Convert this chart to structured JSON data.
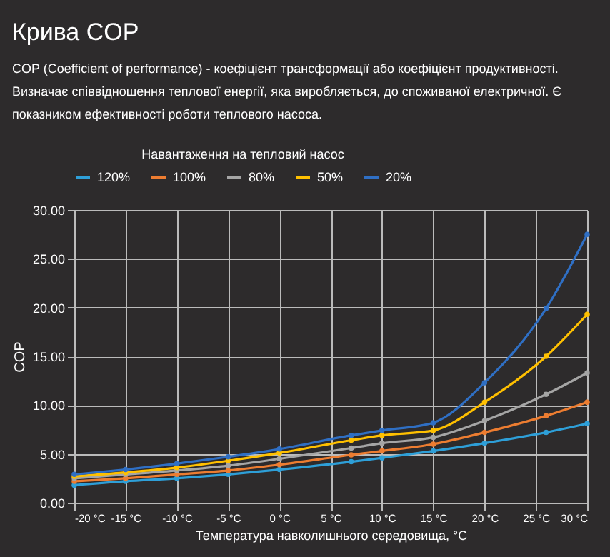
{
  "chart_data": {
    "type": "line",
    "title": "Крива COP",
    "subtitle": "COP (Coefficient of performance) - коефіцієнт трансформації або коефіцієнт продуктивності. Визначає співвідношення теплової енергії, яка виробляється, до споживаної електричної. Є показником ефективності роботи теплового насоса.",
    "xlabel": "Температура навколишнього середовища, °C",
    "ylabel": "COP",
    "legend_title": "Навантаження на тепловий насос",
    "x": [
      -20,
      -15,
      -10,
      -5,
      0,
      7,
      10,
      15,
      20,
      26,
      30
    ],
    "series": [
      {
        "name": "120%",
        "color": "#2e9fd8",
        "values": [
          1.8,
          2.2,
          2.5,
          2.9,
          3.4,
          4.2,
          4.6,
          5.3,
          6.1,
          7.2,
          8.1
        ]
      },
      {
        "name": "100%",
        "color": "#ed7d31",
        "values": [
          2.2,
          2.5,
          2.9,
          3.3,
          3.9,
          4.9,
          5.3,
          6.0,
          7.2,
          8.9,
          10.3
        ]
      },
      {
        "name": "80%",
        "color": "#a5a5a5",
        "values": [
          2.5,
          2.9,
          3.3,
          3.8,
          4.5,
          5.6,
          6.1,
          6.7,
          8.4,
          11.1,
          13.3
        ]
      },
      {
        "name": "50%",
        "color": "#ffc000",
        "values": [
          2.7,
          3.1,
          3.6,
          4.3,
          5.1,
          6.4,
          6.9,
          7.4,
          10.3,
          15.0,
          19.3
        ]
      },
      {
        "name": "20%",
        "color": "#2f6fc4",
        "values": [
          2.9,
          3.4,
          4.0,
          4.7,
          5.5,
          6.9,
          7.4,
          8.2,
          12.3,
          19.9,
          27.5
        ]
      }
    ],
    "xlim": [
      -20,
      30
    ],
    "xticks": [
      {
        "value": -20,
        "label": "-20 °C"
      },
      {
        "value": -15,
        "label": "-15 °C"
      },
      {
        "value": -10,
        "label": "-10 °C"
      },
      {
        "value": -5,
        "label": "-5 °C"
      },
      {
        "value": 0,
        "label": "0 °C"
      },
      {
        "value": 5,
        "label": "5 °C"
      },
      {
        "value": 10,
        "label": "10 °C"
      },
      {
        "value": 15,
        "label": "15 °C"
      },
      {
        "value": 20,
        "label": "20 °C"
      },
      {
        "value": 25,
        "label": "25 °C"
      },
      {
        "value": 30,
        "label": "30 °C"
      }
    ],
    "ylim": [
      0,
      30
    ],
    "yticks": [
      {
        "value": 0,
        "label": "0.00"
      },
      {
        "value": 5,
        "label": "5.00"
      },
      {
        "value": 10,
        "label": "10.00"
      },
      {
        "value": 15,
        "label": "15.00"
      },
      {
        "value": 20,
        "label": "20.00"
      },
      {
        "value": 25,
        "label": "25.00"
      },
      {
        "value": 30,
        "label": "30.00"
      }
    ],
    "grid": true,
    "legend": "top",
    "marker": "circle",
    "line_style": "solid"
  }
}
